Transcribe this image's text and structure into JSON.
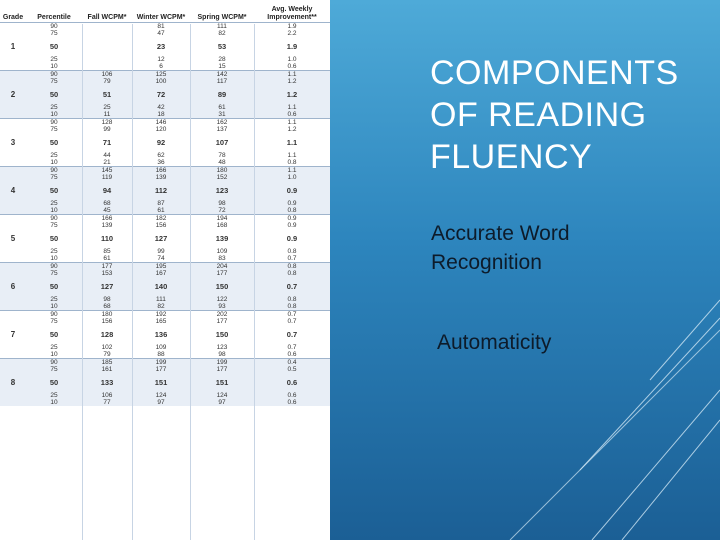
{
  "slide": {
    "title_lines": [
      "COMPONENTS",
      "OF READING",
      "FLUENCY"
    ],
    "bullets": [
      "Accurate Word Recognition",
      "Automaticity"
    ]
  },
  "table": {
    "headers": {
      "grade": "Grade",
      "percentile": "Percentile",
      "fall": "Fall WCPM*",
      "winter": "Winter WCPM*",
      "spring": "Spring WCPM*",
      "avg": "Avg. Weekly Improvement**"
    },
    "groups": [
      {
        "grade": "1",
        "rows": [
          [
            "90",
            "",
            "81",
            "111",
            "1.9"
          ],
          [
            "75",
            "",
            "47",
            "82",
            "2.2"
          ],
          [
            "50",
            "",
            "23",
            "53",
            "1.9"
          ],
          [
            "25",
            "",
            "12",
            "28",
            "1.0"
          ],
          [
            "10",
            "",
            "6",
            "15",
            "0.6"
          ]
        ]
      },
      {
        "grade": "2",
        "rows": [
          [
            "90",
            "106",
            "125",
            "142",
            "1.1"
          ],
          [
            "75",
            "79",
            "100",
            "117",
            "1.2"
          ],
          [
            "50",
            "51",
            "72",
            "89",
            "1.2"
          ],
          [
            "25",
            "25",
            "42",
            "61",
            "1.1"
          ],
          [
            "10",
            "11",
            "18",
            "31",
            "0.6"
          ]
        ]
      },
      {
        "grade": "3",
        "rows": [
          [
            "90",
            "128",
            "146",
            "162",
            "1.1"
          ],
          [
            "75",
            "99",
            "120",
            "137",
            "1.2"
          ],
          [
            "50",
            "71",
            "92",
            "107",
            "1.1"
          ],
          [
            "25",
            "44",
            "62",
            "78",
            "1.1"
          ],
          [
            "10",
            "21",
            "36",
            "48",
            "0.8"
          ]
        ]
      },
      {
        "grade": "4",
        "rows": [
          [
            "90",
            "145",
            "166",
            "180",
            "1.1"
          ],
          [
            "75",
            "119",
            "139",
            "152",
            "1.0"
          ],
          [
            "50",
            "94",
            "112",
            "123",
            "0.9"
          ],
          [
            "25",
            "68",
            "87",
            "98",
            "0.9"
          ],
          [
            "10",
            "45",
            "61",
            "72",
            "0.8"
          ]
        ]
      },
      {
        "grade": "5",
        "rows": [
          [
            "90",
            "166",
            "182",
            "194",
            "0.9"
          ],
          [
            "75",
            "139",
            "156",
            "168",
            "0.9"
          ],
          [
            "50",
            "110",
            "127",
            "139",
            "0.9"
          ],
          [
            "25",
            "85",
            "99",
            "109",
            "0.8"
          ],
          [
            "10",
            "61",
            "74",
            "83",
            "0.7"
          ]
        ]
      },
      {
        "grade": "6",
        "rows": [
          [
            "90",
            "177",
            "195",
            "204",
            "0.8"
          ],
          [
            "75",
            "153",
            "167",
            "177",
            "0.8"
          ],
          [
            "50",
            "127",
            "140",
            "150",
            "0.7"
          ],
          [
            "25",
            "98",
            "111",
            "122",
            "0.8"
          ],
          [
            "10",
            "68",
            "82",
            "93",
            "0.8"
          ]
        ]
      },
      {
        "grade": "7",
        "rows": [
          [
            "90",
            "180",
            "192",
            "202",
            "0.7"
          ],
          [
            "75",
            "156",
            "165",
            "177",
            "0.7"
          ],
          [
            "50",
            "128",
            "136",
            "150",
            "0.7"
          ],
          [
            "25",
            "102",
            "109",
            "123",
            "0.7"
          ],
          [
            "10",
            "79",
            "88",
            "98",
            "0.6"
          ]
        ]
      },
      {
        "grade": "8",
        "rows": [
          [
            "90",
            "185",
            "199",
            "199",
            "0.4"
          ],
          [
            "75",
            "161",
            "177",
            "177",
            "0.5"
          ],
          [
            "50",
            "133",
            "151",
            "151",
            "0.6"
          ],
          [
            "25",
            "106",
            "124",
            "124",
            "0.6"
          ],
          [
            "10",
            "77",
            "97",
            "97",
            "0.6"
          ]
        ]
      }
    ]
  },
  "colors": {
    "panel_top": "#4eaad8",
    "panel_bottom": "#1b5f95",
    "title": "#ffffff",
    "bullet_text": "#0d1b2a",
    "row_band": "#e8eef6"
  }
}
